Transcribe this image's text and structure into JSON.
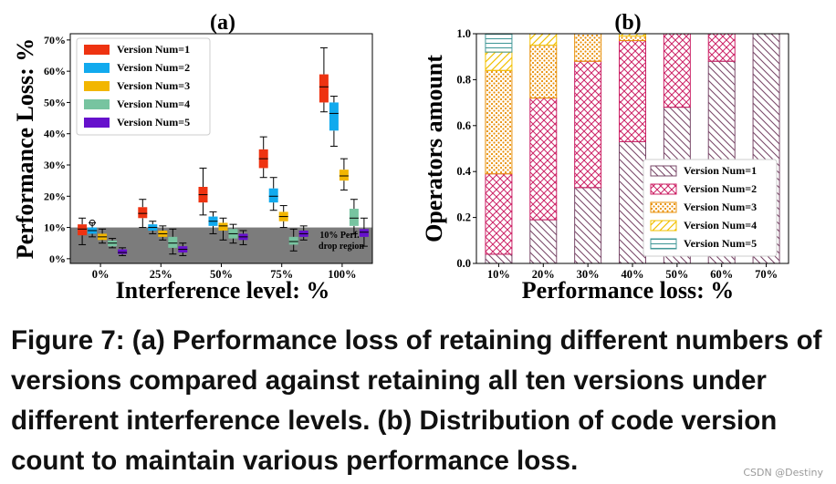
{
  "chart_data": [
    {
      "type": "box",
      "panel_label": "(a)",
      "xlabel": "Interference level: %",
      "ylabel": "Performance Loss: %",
      "categories": [
        "0%",
        "25%",
        "50%",
        "75%",
        "100%"
      ],
      "yticks": [
        "0%",
        "10%",
        "20%",
        "30%",
        "40%",
        "50%",
        "60%",
        "70%"
      ],
      "ylim": [
        -1.5,
        72
      ],
      "region_label_line1": "10% Perf.",
      "region_label_line2": "drop region",
      "region_value": 10,
      "series": [
        {
          "name": "Version Num=1",
          "color": "#ee3311",
          "boxes": [
            {
              "min": 4.5,
              "q1": 7.5,
              "median": 9.5,
              "q3": 11,
              "max": 13
            },
            {
              "min": 10,
              "q1": 13,
              "median": 14.5,
              "q3": 16.5,
              "max": 19
            },
            {
              "min": 14,
              "q1": 18,
              "median": 20.5,
              "q3": 23,
              "max": 29
            },
            {
              "min": 26,
              "q1": 29,
              "median": 32,
              "q3": 35,
              "max": 39
            },
            {
              "min": 47,
              "q1": 50,
              "median": 55,
              "q3": 59,
              "max": 67.5
            }
          ]
        },
        {
          "name": "Version Num=2",
          "color": "#11aaee",
          "boxes": [
            {
              "min": 7,
              "q1": 8,
              "median": 9,
              "q3": 10,
              "max": 11.5
            },
            {
              "min": 8,
              "q1": 9,
              "median": 10,
              "q3": 11,
              "max": 12
            },
            {
              "min": 8,
              "q1": 10.5,
              "median": 12,
              "q3": 13.5,
              "max": 15
            },
            {
              "min": 15.5,
              "q1": 18,
              "median": 20,
              "q3": 22.5,
              "max": 26
            },
            {
              "min": 36,
              "q1": 41,
              "median": 46.5,
              "q3": 50,
              "max": 52
            }
          ]
        },
        {
          "name": "Version Num=3",
          "color": "#f2b600",
          "boxes": [
            {
              "min": 5,
              "q1": 6,
              "median": 7,
              "q3": 8,
              "max": 9.5
            },
            {
              "min": 6,
              "q1": 7,
              "median": 8,
              "q3": 9,
              "max": 10.5
            },
            {
              "min": 6,
              "q1": 9,
              "median": 10.5,
              "q3": 11.5,
              "max": 13
            },
            {
              "min": 10,
              "q1": 12,
              "median": 13.5,
              "q3": 15,
              "max": 17
            },
            {
              "min": 22,
              "q1": 25,
              "median": 26.5,
              "q3": 28.5,
              "max": 32
            }
          ]
        },
        {
          "name": "Version Num=4",
          "color": "#77c4a0",
          "boxes": [
            {
              "min": 3.5,
              "q1": 4,
              "median": 5,
              "q3": 5.8,
              "max": 6.5
            },
            {
              "min": 1.5,
              "q1": 3.5,
              "median": 5,
              "q3": 7,
              "max": 9.5
            },
            {
              "min": 5,
              "q1": 6.5,
              "median": 8,
              "q3": 9.5,
              "max": 11
            },
            {
              "min": 2.5,
              "q1": 4.5,
              "median": 5.5,
              "q3": 7,
              "max": 9.5
            },
            {
              "min": 8,
              "q1": 10.5,
              "median": 13,
              "q3": 16,
              "max": 19
            }
          ]
        },
        {
          "name": "Version Num=5",
          "color": "#6611cc",
          "boxes": [
            {
              "min": 1,
              "q1": 1.5,
              "median": 2,
              "q3": 3,
              "max": 3.5
            },
            {
              "min": 1,
              "q1": 2,
              "median": 3,
              "q3": 4,
              "max": 5
            },
            {
              "min": 4.5,
              "q1": 6,
              "median": 7,
              "q3": 8,
              "max": 9
            },
            {
              "min": 6,
              "q1": 7,
              "median": 8,
              "q3": 9,
              "max": 10.5
            },
            {
              "min": 4,
              "q1": 7,
              "median": 8.5,
              "q3": 9.5,
              "max": 13
            }
          ]
        }
      ],
      "outliers": [
        {
          "category": "0%",
          "series": "Version Num=2",
          "value": 11.5
        }
      ]
    },
    {
      "type": "bar",
      "stacked": true,
      "panel_label": "(b)",
      "xlabel": "Performance loss: %",
      "ylabel": "Operators amount",
      "categories": [
        "10%",
        "20%",
        "30%",
        "40%",
        "50%",
        "60%",
        "70%"
      ],
      "yticks": [
        "0.0",
        "0.2",
        "0.4",
        "0.6",
        "0.8",
        "1.0"
      ],
      "ylim": [
        0,
        1.0
      ],
      "series": [
        {
          "name": "Version Num=1",
          "color": "#7a4a6a",
          "pattern": "diagonal-back",
          "values": [
            0.04,
            0.19,
            0.33,
            0.53,
            0.68,
            0.88,
            1.0
          ]
        },
        {
          "name": "Version Num=2",
          "color": "#cc2266",
          "pattern": "cross-hatch",
          "values": [
            0.35,
            0.53,
            0.55,
            0.44,
            0.32,
            0.12,
            0.0
          ]
        },
        {
          "name": "Version Num=3",
          "color": "#e8900a",
          "pattern": "dots",
          "values": [
            0.45,
            0.23,
            0.12,
            0.02,
            0.0,
            0.0,
            0.0
          ]
        },
        {
          "name": "Version Num=4",
          "color": "#f2c000",
          "pattern": "diagonal-fwd",
          "values": [
            0.08,
            0.05,
            0.0,
            0.01,
            0.0,
            0.0,
            0.0
          ]
        },
        {
          "name": "Version Num=5",
          "color": "#449999",
          "pattern": "horizontal",
          "values": [
            0.08,
            0.0,
            0.0,
            0.0,
            0.0,
            0.0,
            0.0
          ]
        }
      ]
    }
  ],
  "caption": "Figure 7: (a) Performance loss of retaining different numbers of versions compared against retaining all ten versions under different interference levels. (b) Distribution of code version count to maintain various performance loss.",
  "watermark": "CSDN @Destiny"
}
